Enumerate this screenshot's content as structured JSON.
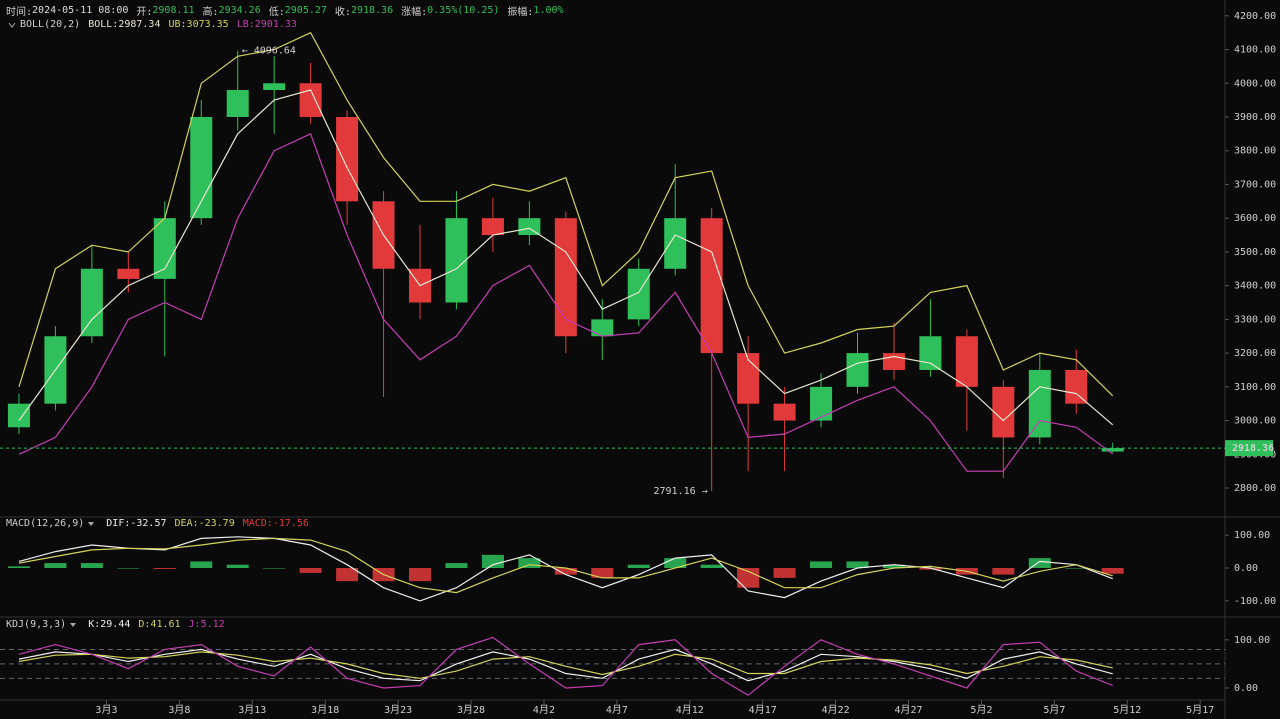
{
  "header": [
    {
      "label": "时间:",
      "value": "2024-05-11 08:00",
      "color": "#dddddd"
    },
    {
      "label": "开:",
      "value": "2908.11",
      "color": "#2fbf5b"
    },
    {
      "label": "高:",
      "value": "2934.26",
      "color": "#2fbf5b"
    },
    {
      "label": "低:",
      "value": "2905.27",
      "color": "#2fbf5b"
    },
    {
      "label": "收:",
      "value": "2918.36",
      "color": "#2fbf5b"
    },
    {
      "label": "涨幅:",
      "value": "0.35%(10.25)",
      "color": "#2fbf5b"
    },
    {
      "label": "振幅:",
      "value": "1.00%",
      "color": "#2fbf5b"
    }
  ],
  "chart_data": [
    {
      "type": "candlestick",
      "indicator": "BOLL(20,2)",
      "up_color": "#2fbf5b",
      "down_color": "#e23a3a",
      "x": [
        -6,
        -3.5,
        -1,
        1.5,
        4,
        6.5,
        9,
        11.5,
        14,
        16.5,
        19,
        21.5,
        24,
        26.5,
        29,
        31.5,
        34,
        36.5,
        39,
        41.5,
        44,
        46.5,
        49,
        51.5,
        54,
        56.5,
        59,
        61.5,
        64,
        66.5,
        69
      ],
      "open": [
        2980,
        3050,
        3250,
        3450,
        3420,
        3600,
        3900,
        3980,
        4000,
        3900,
        3650,
        3450,
        3350,
        3600,
        3550,
        3600,
        3250,
        3300,
        3450,
        3600,
        3200,
        3050,
        3000,
        3100,
        3200,
        3150,
        3250,
        3100,
        2950,
        3150,
        2908.11
      ],
      "high": [
        3080,
        3280,
        3520,
        3500,
        3650,
        3950,
        4096.64,
        4080,
        4060,
        3920,
        3680,
        3580,
        3680,
        3660,
        3650,
        3620,
        3360,
        3480,
        3760,
        3630,
        3250,
        3100,
        3140,
        3260,
        3290,
        3360,
        3270,
        3120,
        3200,
        3210,
        2934.26
      ],
      "low": [
        2960,
        3030,
        3230,
        3380,
        3190,
        3580,
        3860,
        3850,
        3880,
        3580,
        3070,
        3300,
        3330,
        3500,
        3520,
        3200,
        3180,
        3280,
        3430,
        2791.16,
        2850,
        2850,
        2980,
        3080,
        3120,
        3130,
        2970,
        2830,
        2930,
        3020,
        2905.27
      ],
      "close": [
        3050,
        3250,
        3450,
        3420,
        3600,
        3900,
        3980,
        4000,
        3900,
        3650,
        3450,
        3350,
        3600,
        3550,
        3600,
        3250,
        3300,
        3450,
        3600,
        3200,
        3050,
        3000,
        3100,
        3200,
        3150,
        3250,
        3100,
        2950,
        3150,
        3050,
        2918.36
      ],
      "xlim": [
        -7.3,
        76.7
      ],
      "xticks": [
        {
          "value": 0,
          "label": "3月3"
        },
        {
          "value": 5,
          "label": "3月8"
        },
        {
          "value": 10,
          "label": "3月13"
        },
        {
          "value": 15,
          "label": "3月18"
        },
        {
          "value": 20,
          "label": "3月23"
        },
        {
          "value": 25,
          "label": "3月28"
        },
        {
          "value": 30,
          "label": "4月2"
        },
        {
          "value": 35,
          "label": "4月7"
        },
        {
          "value": 40,
          "label": "4月12"
        },
        {
          "value": 45,
          "label": "4月17"
        },
        {
          "value": 50,
          "label": "4月22"
        },
        {
          "value": 55,
          "label": "4月27"
        },
        {
          "value": 60,
          "label": "5月2"
        },
        {
          "value": 65,
          "label": "5月7"
        },
        {
          "value": 70,
          "label": "5月12"
        },
        {
          "value": 75,
          "label": "5月17"
        }
      ],
      "ylim": [
        2720,
        4232
      ],
      "yticks": [
        {
          "value": 2800,
          "label": "2800.00"
        },
        {
          "value": 2900,
          "label": "2900.00"
        },
        {
          "value": 3000,
          "label": "3000.00"
        },
        {
          "value": 3100,
          "label": "3100.00"
        },
        {
          "value": 3200,
          "label": "3200.00"
        },
        {
          "value": 3300,
          "label": "3300.00"
        },
        {
          "value": 3400,
          "label": "3400.00"
        },
        {
          "value": 3500,
          "label": "3500.00"
        },
        {
          "value": 3600,
          "label": "3600.00"
        },
        {
          "value": 3700,
          "label": "3700.00"
        },
        {
          "value": 3800,
          "label": "3800.00"
        },
        {
          "value": 3900,
          "label": "3900.00"
        },
        {
          "value": 4000,
          "label": "4000.00"
        },
        {
          "value": 4100,
          "label": "4100.00"
        },
        {
          "value": 4200,
          "label": "4200.00"
        }
      ],
      "series": [
        {
          "name": "BOLL",
          "legend_label": "BOLL:",
          "value_label": "2987.34",
          "color": "#e6e6cf",
          "values": [
            3000,
            3150,
            3300,
            3400,
            3450,
            3650,
            3850,
            3950,
            3980,
            3750,
            3550,
            3400,
            3450,
            3550,
            3570,
            3500,
            3330,
            3380,
            3550,
            3500,
            3180,
            3080,
            3120,
            3170,
            3190,
            3170,
            3100,
            3000,
            3100,
            3080,
            2987.34
          ]
        },
        {
          "name": "UB",
          "legend_label": "UB:",
          "value_label": "3073.35",
          "color": "#d2d25a",
          "values": [
            3100,
            3450,
            3520,
            3500,
            3600,
            4000,
            4080,
            4100,
            4150,
            3950,
            3780,
            3650,
            3650,
            3700,
            3680,
            3720,
            3400,
            3500,
            3720,
            3740,
            3400,
            3200,
            3230,
            3270,
            3280,
            3380,
            3400,
            3150,
            3200,
            3180,
            3073.35
          ]
        },
        {
          "name": "LB",
          "legend_label": "LB:",
          "value_label": "2901.33",
          "color": "#c43fb4",
          "values": [
            2900,
            2950,
            3100,
            3300,
            3350,
            3300,
            3600,
            3800,
            3850,
            3550,
            3300,
            3180,
            3250,
            3400,
            3460,
            3300,
            3250,
            3260,
            3380,
            3200,
            2950,
            2960,
            3010,
            3060,
            3100,
            3000,
            2850,
            2850,
            3000,
            2980,
            2901.33
          ]
        }
      ],
      "annotations": [
        {
          "text": "← 4096.64",
          "value": 4096.64,
          "x": 9
        },
        {
          "text": "2791.16 →",
          "value": 2791.16,
          "x": 41.5
        }
      ],
      "last_price": {
        "value": 2918.36,
        "label": "2918.36",
        "color": "#2fbf5b"
      }
    },
    {
      "type": "macd",
      "indicator": "MACD(12,26,9)",
      "up_color": "#2fbf5b",
      "down_color": "#e23a3a",
      "ylim": [
        -140,
        140
      ],
      "yticks": [
        {
          "value": 100,
          "label": "100.00"
        },
        {
          "value": 0,
          "label": "0.00"
        },
        {
          "value": -100,
          "label": "-100.00"
        }
      ],
      "series": [
        {
          "name": "DIF",
          "legend_label": "DIF:",
          "value_label": "-32.57",
          "color": "#eeeeee",
          "style": "line",
          "values": [
            20,
            50,
            70,
            60,
            55,
            90,
            95,
            90,
            70,
            10,
            -60,
            -100,
            -60,
            10,
            40,
            -20,
            -60,
            -20,
            30,
            40,
            -70,
            -90,
            -40,
            0,
            10,
            0,
            -30,
            -60,
            20,
            10,
            -32.57
          ]
        },
        {
          "name": "DEA",
          "legend_label": "DEA:",
          "value_label": "-23.79",
          "color": "#d2d25a",
          "style": "line",
          "values": [
            15,
            35,
            55,
            60,
            58,
            70,
            85,
            90,
            85,
            50,
            -20,
            -60,
            -75,
            -30,
            10,
            0,
            -30,
            -30,
            0,
            30,
            -10,
            -60,
            -60,
            -20,
            0,
            5,
            -10,
            -40,
            -10,
            10,
            -23.79
          ]
        },
        {
          "name": "MACD",
          "legend_label": "MACD:",
          "value_label": "-17.56",
          "color": "#e23a3a",
          "style": "bar",
          "values": [
            5,
            15,
            15,
            0,
            -3,
            20,
            10,
            0,
            -15,
            -40,
            -40,
            -40,
            15,
            40,
            30,
            -20,
            -30,
            10,
            30,
            10,
            -60,
            -30,
            20,
            20,
            10,
            -5,
            -20,
            -20,
            30,
            0,
            -17.56
          ]
        }
      ]
    },
    {
      "type": "kdj",
      "indicator": "KDJ(9,3,3)",
      "ylim": [
        -25,
        137
      ],
      "yticks": [
        {
          "value": 100,
          "label": "100.00"
        },
        {
          "value": 0,
          "label": "0.00"
        }
      ],
      "levels": [
        20,
        50,
        80
      ],
      "series": [
        {
          "name": "K",
          "legend_label": "K:",
          "value_label": "29.44",
          "color": "#eeeeee",
          "values": [
            60,
            75,
            70,
            55,
            70,
            80,
            60,
            45,
            70,
            40,
            20,
            15,
            50,
            75,
            60,
            30,
            20,
            60,
            80,
            50,
            15,
            35,
            70,
            65,
            55,
            40,
            20,
            60,
            75,
            50,
            29.44
          ]
        },
        {
          "name": "D",
          "legend_label": "D:",
          "value_label": "41.61",
          "color": "#d2d25a",
          "values": [
            55,
            68,
            70,
            62,
            65,
            75,
            68,
            55,
            62,
            50,
            30,
            20,
            35,
            60,
            65,
            45,
            28,
            45,
            70,
            60,
            30,
            30,
            55,
            62,
            58,
            48,
            30,
            45,
            65,
            58,
            41.61
          ]
        },
        {
          "name": "J",
          "legend_label": "J:",
          "value_label": "5.12",
          "color": "#c43fb4",
          "values": [
            70,
            90,
            70,
            40,
            80,
            90,
            45,
            25,
            85,
            20,
            0,
            5,
            80,
            105,
            50,
            0,
            5,
            90,
            100,
            30,
            -15,
            45,
            100,
            70,
            50,
            25,
            0,
            90,
            95,
            35,
            5.12
          ]
        }
      ]
    }
  ]
}
